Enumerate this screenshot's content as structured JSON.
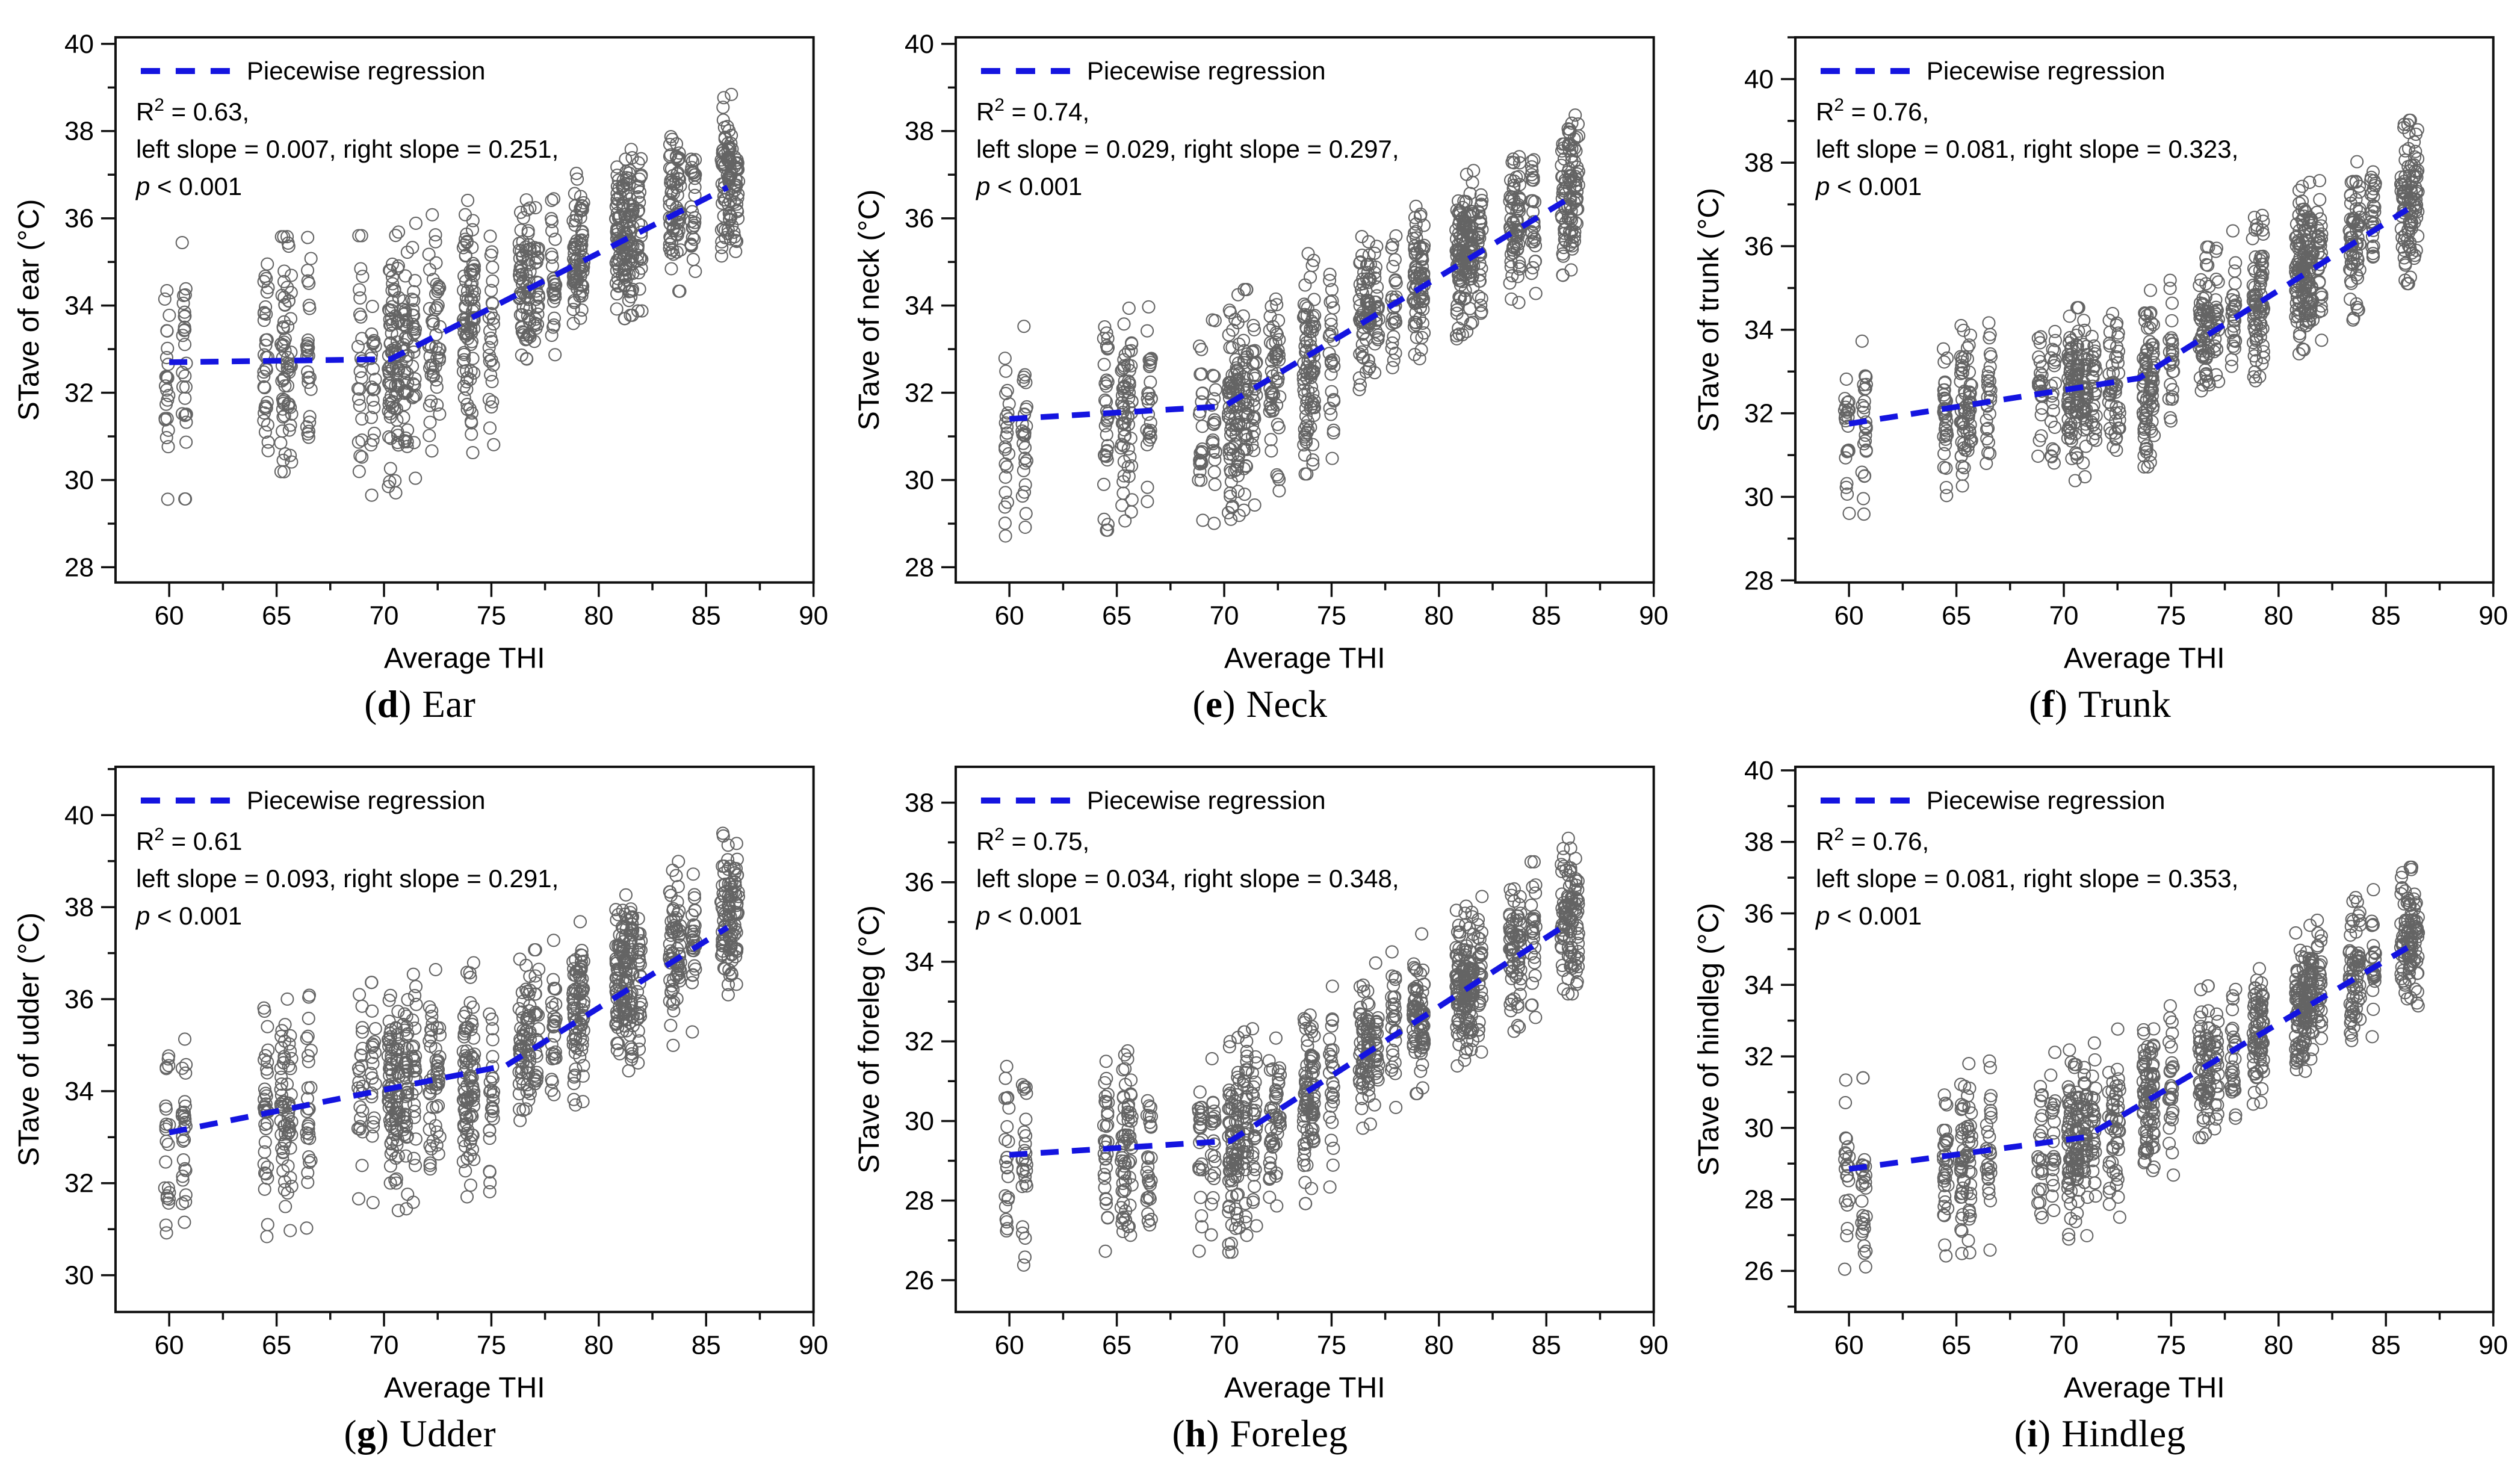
{
  "figure": {
    "caption_open": "(",
    "caption_close": ")",
    "legend_label": "Piecewise regression",
    "x_axis_label": "Average THI",
    "accent_color": "#1414e0",
    "marker_color": "#4a4a4a",
    "axis_color": "#111111",
    "shared_clusters": [
      [
        59.9,
        23
      ],
      [
        60.7,
        27
      ],
      [
        64.5,
        33
      ],
      [
        65.3,
        36
      ],
      [
        65.6,
        29
      ],
      [
        66.5,
        27
      ],
      [
        68.9,
        24
      ],
      [
        69.5,
        21
      ],
      [
        70.3,
        48
      ],
      [
        70.6,
        42
      ],
      [
        71.0,
        39
      ],
      [
        71.4,
        27
      ],
      [
        72.2,
        24
      ],
      [
        72.5,
        27
      ],
      [
        73.8,
        45
      ],
      [
        74.1,
        42
      ],
      [
        75.0,
        27
      ],
      [
        76.4,
        33
      ],
      [
        76.7,
        36
      ],
      [
        77.1,
        24
      ],
      [
        77.9,
        27
      ],
      [
        78.9,
        39
      ],
      [
        79.2,
        42
      ],
      [
        80.9,
        45
      ],
      [
        81.2,
        54
      ],
      [
        81.5,
        42
      ],
      [
        81.9,
        30
      ],
      [
        83.4,
        36
      ],
      [
        83.7,
        33
      ],
      [
        84.4,
        27
      ],
      [
        85.8,
        33
      ],
      [
        86.1,
        42
      ],
      [
        86.4,
        30
      ]
    ]
  },
  "chart_data": [
    {
      "id": "d",
      "type": "scatter",
      "caption_letter": "d",
      "caption_label": "Ear",
      "xlabel": "Average THI",
      "ylabel": "STave of ear (°C)",
      "xlim": [
        57.5,
        90
      ],
      "ylim": [
        27.65,
        40.15
      ],
      "x_ticks": [
        60,
        65,
        70,
        75,
        80,
        85,
        90
      ],
      "x_minor_step": 2.5,
      "y_ticks": [
        28,
        30,
        32,
        34,
        36,
        38,
        40
      ],
      "y_minor_step": 1,
      "legend": {
        "series": "Piecewise regression",
        "r2_base": "R",
        "r2_sup": "2",
        "r2_rest": " = 0.63,",
        "slopes": "left slope = 0.007, right slope = 0.251,",
        "p_italic": "p",
        "p_rest": " < 0.001"
      },
      "regression": {
        "r2": 0.63,
        "left_slope": 0.007,
        "right_slope": 0.251,
        "p": "< 0.001",
        "points": [
          [
            60,
            32.7
          ],
          [
            70.3,
            32.77
          ],
          [
            86,
            36.71
          ]
        ]
      },
      "scatter_profile": {
        "sd_low": 1.3,
        "sd_high": 0.85,
        "sd_switch": 75.3,
        "mu_offset_low": -0.15,
        "mu_offset_high": 0.15,
        "clip": [
          29.1,
          38.95
        ],
        "seed": 11
      }
    },
    {
      "id": "e",
      "type": "scatter",
      "caption_letter": "e",
      "caption_label": "Neck",
      "xlabel": "Average THI",
      "ylabel": "STave of neck (°C)",
      "xlim": [
        57.5,
        90
      ],
      "ylim": [
        27.65,
        40.15
      ],
      "x_ticks": [
        60,
        65,
        70,
        75,
        80,
        85,
        90
      ],
      "x_minor_step": 2.5,
      "y_ticks": [
        28,
        30,
        32,
        34,
        36,
        38,
        40
      ],
      "y_minor_step": 1,
      "legend": {
        "series": "Piecewise regression",
        "r2_base": "R",
        "r2_sup": "2",
        "r2_rest": " = 0.74,",
        "slopes": "left slope = 0.029, right slope = 0.297,",
        "p_italic": "p",
        "p_rest": " < 0.001"
      },
      "regression": {
        "r2": 0.74,
        "left_slope": 0.029,
        "right_slope": 0.297,
        "p": "< 0.001",
        "points": [
          [
            60,
            31.4
          ],
          [
            70,
            31.69
          ],
          [
            86,
            36.44
          ]
        ]
      },
      "scatter_profile": {
        "sd_low": 1.1,
        "sd_high": 0.8,
        "sd_switch": 75.3,
        "mu_offset_low": -0.15,
        "mu_offset_high": 0.15,
        "clip": [
          28.4,
          38.6
        ],
        "seed": 22
      }
    },
    {
      "id": "f",
      "type": "scatter",
      "caption_letter": "f",
      "caption_label": "Trunk",
      "xlabel": "Average THI",
      "ylabel": "STave of trunk (°C)",
      "xlim": [
        57.5,
        90
      ],
      "ylim": [
        27.95,
        41.0
      ],
      "x_ticks": [
        60,
        65,
        70,
        75,
        80,
        85,
        90
      ],
      "x_minor_step": 2.5,
      "y_ticks": [
        28,
        30,
        32,
        34,
        36,
        38,
        40
      ],
      "y_minor_step": 1,
      "legend": {
        "series": "Piecewise regression",
        "r2_base": "R",
        "r2_sup": "2",
        "r2_rest": " = 0.76,",
        "slopes": "left slope = 0.081, right slope = 0.323,",
        "p_italic": "p",
        "p_rest": " < 0.001"
      },
      "regression": {
        "r2": 0.76,
        "left_slope": 0.081,
        "right_slope": 0.323,
        "p": "< 0.001",
        "points": [
          [
            60,
            31.75
          ],
          [
            73.5,
            32.84
          ],
          [
            86,
            36.88
          ]
        ]
      },
      "scatter_profile": {
        "sd_low": 0.9,
        "sd_high": 0.85,
        "sd_switch": 75.3,
        "mu_offset_low": -0.15,
        "mu_offset_high": 0.15,
        "clip": [
          29.3,
          39.5
        ],
        "seed": 33
      }
    },
    {
      "id": "g",
      "type": "scatter",
      "caption_letter": "g",
      "caption_label": "Udder",
      "xlabel": "Average THI",
      "ylabel": "STave of udder (°C)",
      "xlim": [
        57.5,
        90
      ],
      "ylim": [
        29.2,
        41.05
      ],
      "x_ticks": [
        60,
        65,
        70,
        75,
        80,
        85,
        90
      ],
      "x_minor_step": 2.5,
      "y_ticks": [
        30,
        32,
        34,
        36,
        38,
        40
      ],
      "y_minor_step": 1,
      "legend": {
        "series": "Piecewise regression",
        "r2_base": "R",
        "r2_sup": "2",
        "r2_rest": " = 0.61",
        "slopes": "left slope = 0.093, right slope = 0.291,",
        "p_italic": "p",
        "p_rest": " < 0.001"
      },
      "regression": {
        "r2": 0.61,
        "left_slope": 0.093,
        "right_slope": 0.291,
        "p": "< 0.001",
        "points": [
          [
            60,
            33.1
          ],
          [
            75.7,
            34.56
          ],
          [
            86,
            37.56
          ]
        ]
      },
      "scatter_profile": {
        "sd_low": 1.1,
        "sd_high": 0.85,
        "sd_switch": 75.3,
        "mu_offset_low": -0.15,
        "mu_offset_high": 0.15,
        "clip": [
          30.0,
          40.15
        ],
        "seed": 44
      }
    },
    {
      "id": "h",
      "type": "scatter",
      "caption_letter": "h",
      "caption_label": "Foreleg",
      "xlabel": "Average THI",
      "ylabel": "STave of foreleg (°C)",
      "xlim": [
        57.5,
        90
      ],
      "ylim": [
        25.2,
        38.9
      ],
      "x_ticks": [
        60,
        65,
        70,
        75,
        80,
        85,
        90
      ],
      "x_minor_step": 2.5,
      "y_ticks": [
        26,
        28,
        30,
        32,
        34,
        36,
        38
      ],
      "y_minor_step": 1,
      "legend": {
        "series": "Piecewise regression",
        "r2_base": "R",
        "r2_sup": "2",
        "r2_rest": " = 0.75,",
        "slopes": "left slope = 0.034, right slope = 0.348,",
        "p_italic": "p",
        "p_rest": " < 0.001"
      },
      "regression": {
        "r2": 0.75,
        "left_slope": 0.034,
        "right_slope": 0.348,
        "p": "< 0.001",
        "points": [
          [
            60,
            29.15
          ],
          [
            70.3,
            29.5
          ],
          [
            86,
            34.96
          ]
        ]
      },
      "scatter_profile": {
        "sd_low": 1.15,
        "sd_high": 0.85,
        "sd_switch": 75.3,
        "mu_offset_low": -0.15,
        "mu_offset_high": 0.15,
        "clip": [
          26.1,
          38.0
        ],
        "seed": 55
      }
    },
    {
      "id": "i",
      "type": "scatter",
      "caption_letter": "i",
      "caption_label": "Hindleg",
      "xlabel": "Average THI",
      "ylabel": "STave of hindleg (°C)",
      "xlim": [
        57.5,
        90
      ],
      "ylim": [
        24.85,
        40.1
      ],
      "x_ticks": [
        60,
        65,
        70,
        75,
        80,
        85,
        90
      ],
      "x_minor_step": 2.5,
      "y_ticks": [
        26,
        28,
        30,
        32,
        34,
        36,
        38,
        40
      ],
      "y_minor_step": 1,
      "legend": {
        "series": "Piecewise regression",
        "r2_base": "R",
        "r2_sup": "2",
        "r2_rest": " = 0.76,",
        "slopes": "left slope = 0.081, right slope = 0.353,",
        "p_italic": "p",
        "p_rest": " < 0.001"
      },
      "regression": {
        "r2": 0.76,
        "left_slope": 0.081,
        "right_slope": 0.353,
        "p": "< 0.001",
        "points": [
          [
            60,
            28.85
          ],
          [
            71,
            29.74
          ],
          [
            86,
            35.04
          ]
        ]
      },
      "scatter_profile": {
        "sd_low": 1.15,
        "sd_high": 0.9,
        "sd_switch": 75.3,
        "mu_offset_low": -0.15,
        "mu_offset_high": 0.15,
        "clip": [
          26.0,
          38.7
        ],
        "seed": 66
      }
    }
  ]
}
